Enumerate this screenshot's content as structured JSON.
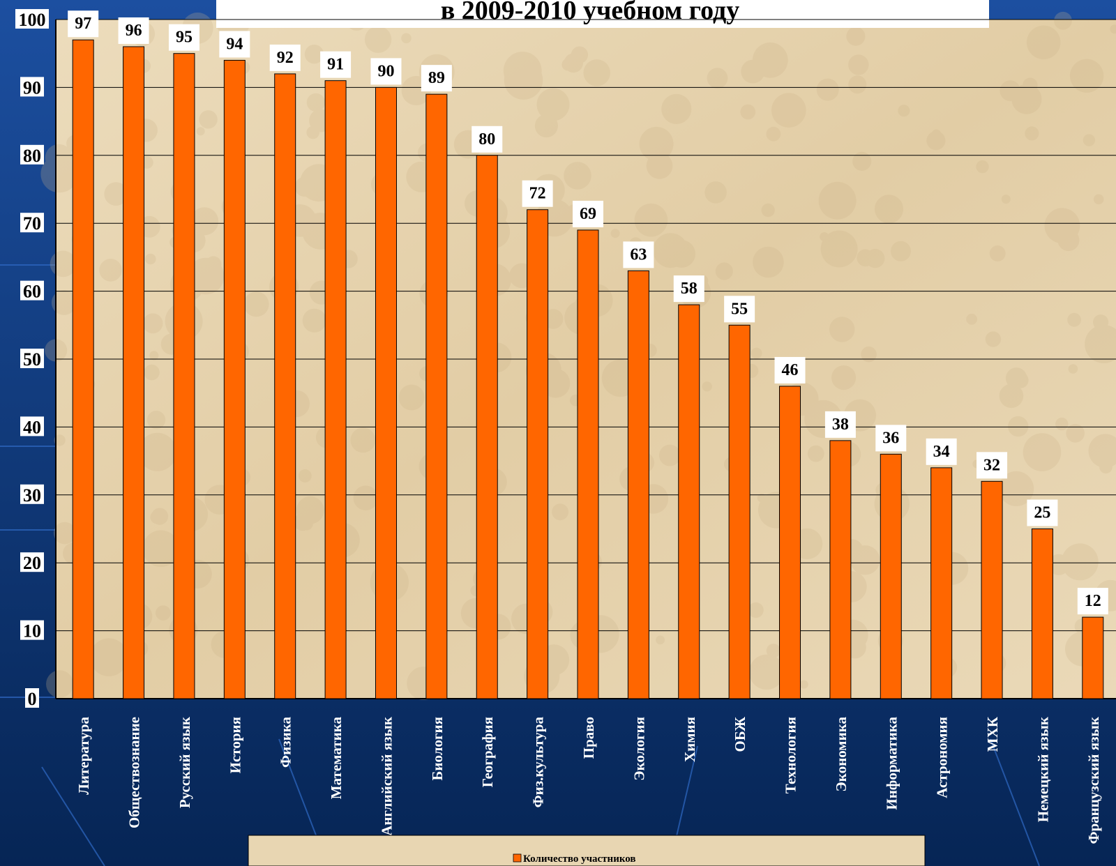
{
  "colors": {
    "bar": "#ff6600",
    "background_top": "#1c4fa0",
    "background_bottom": "#062555",
    "plot_area": "#e8d6b2",
    "label_box": "#ffffff"
  },
  "chart_data": {
    "type": "bar",
    "title": "в 2009-2010 учебном году",
    "categories": [
      "Литература",
      "Обществознание",
      "Русский язык",
      "История",
      "Физика",
      "Математика",
      "Английский язык",
      "Биология",
      "География",
      "Физ.культура",
      "Право",
      "Экология",
      "Химия",
      "ОБЖ",
      "Технология",
      "Экономика",
      "Информатика",
      "Астрономия",
      "МХК",
      "Немецкий язык",
      "Французский язык"
    ],
    "series": [
      {
        "name": "Количество участников",
        "values": [
          97,
          96,
          95,
          94,
          92,
          91,
          90,
          89,
          80,
          72,
          69,
          63,
          58,
          55,
          46,
          38,
          36,
          34,
          32,
          25,
          12
        ]
      }
    ],
    "ylim": [
      0,
      100
    ],
    "yticks": [
      0,
      10,
      20,
      30,
      40,
      50,
      60,
      70,
      80,
      90,
      100
    ],
    "xlabel": "",
    "ylabel": "",
    "grid": true,
    "legend_position": "bottom",
    "data_labels": true
  }
}
